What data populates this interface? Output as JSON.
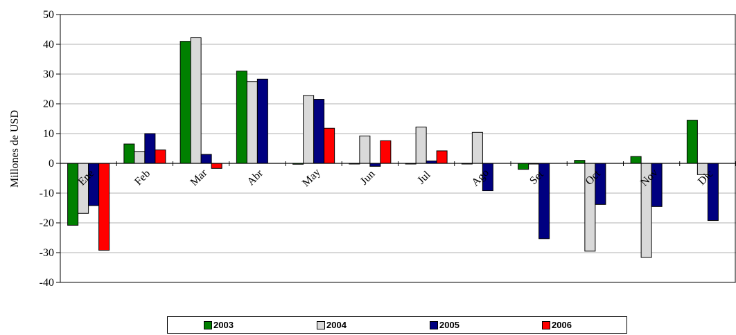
{
  "chart_data": {
    "type": "bar",
    "title": "",
    "xlabel": "",
    "ylabel": "Millones de USD",
    "ylim": [
      -40,
      50
    ],
    "ytick_step": 10,
    "grid": true,
    "legend_position": "bottom",
    "categories": [
      "Ene",
      "Feb",
      "Mar",
      "Abr",
      "May",
      "Jun",
      "Jul",
      "Ago",
      "Set",
      "Oct",
      "Nov",
      "Dic"
    ],
    "series": [
      {
        "name": "2003",
        "color": "#008000",
        "values": [
          -20.8,
          6.5,
          41.0,
          31.0,
          -0.3,
          -0.2,
          0,
          0,
          -2.0,
          1.0,
          2.3,
          14.5
        ]
      },
      {
        "name": "2004",
        "color": "#d9d9d9",
        "values": [
          -16.8,
          4.0,
          42.2,
          27.5,
          22.8,
          9.2,
          12.2,
          10.4,
          0,
          -29.5,
          -31.6,
          -3.8
        ]
      },
      {
        "name": "2005",
        "color": "#000080",
        "values": [
          -14.2,
          10.0,
          3.0,
          28.3,
          21.5,
          -1.0,
          0.8,
          -9.2,
          -25.3,
          -13.8,
          -14.5,
          -19.2
        ]
      },
      {
        "name": "2006",
        "color": "#ff0000",
        "values": [
          -29.2,
          4.5,
          -1.7,
          null,
          11.8,
          7.6,
          4.2,
          null,
          null,
          null,
          null,
          null
        ]
      }
    ]
  }
}
